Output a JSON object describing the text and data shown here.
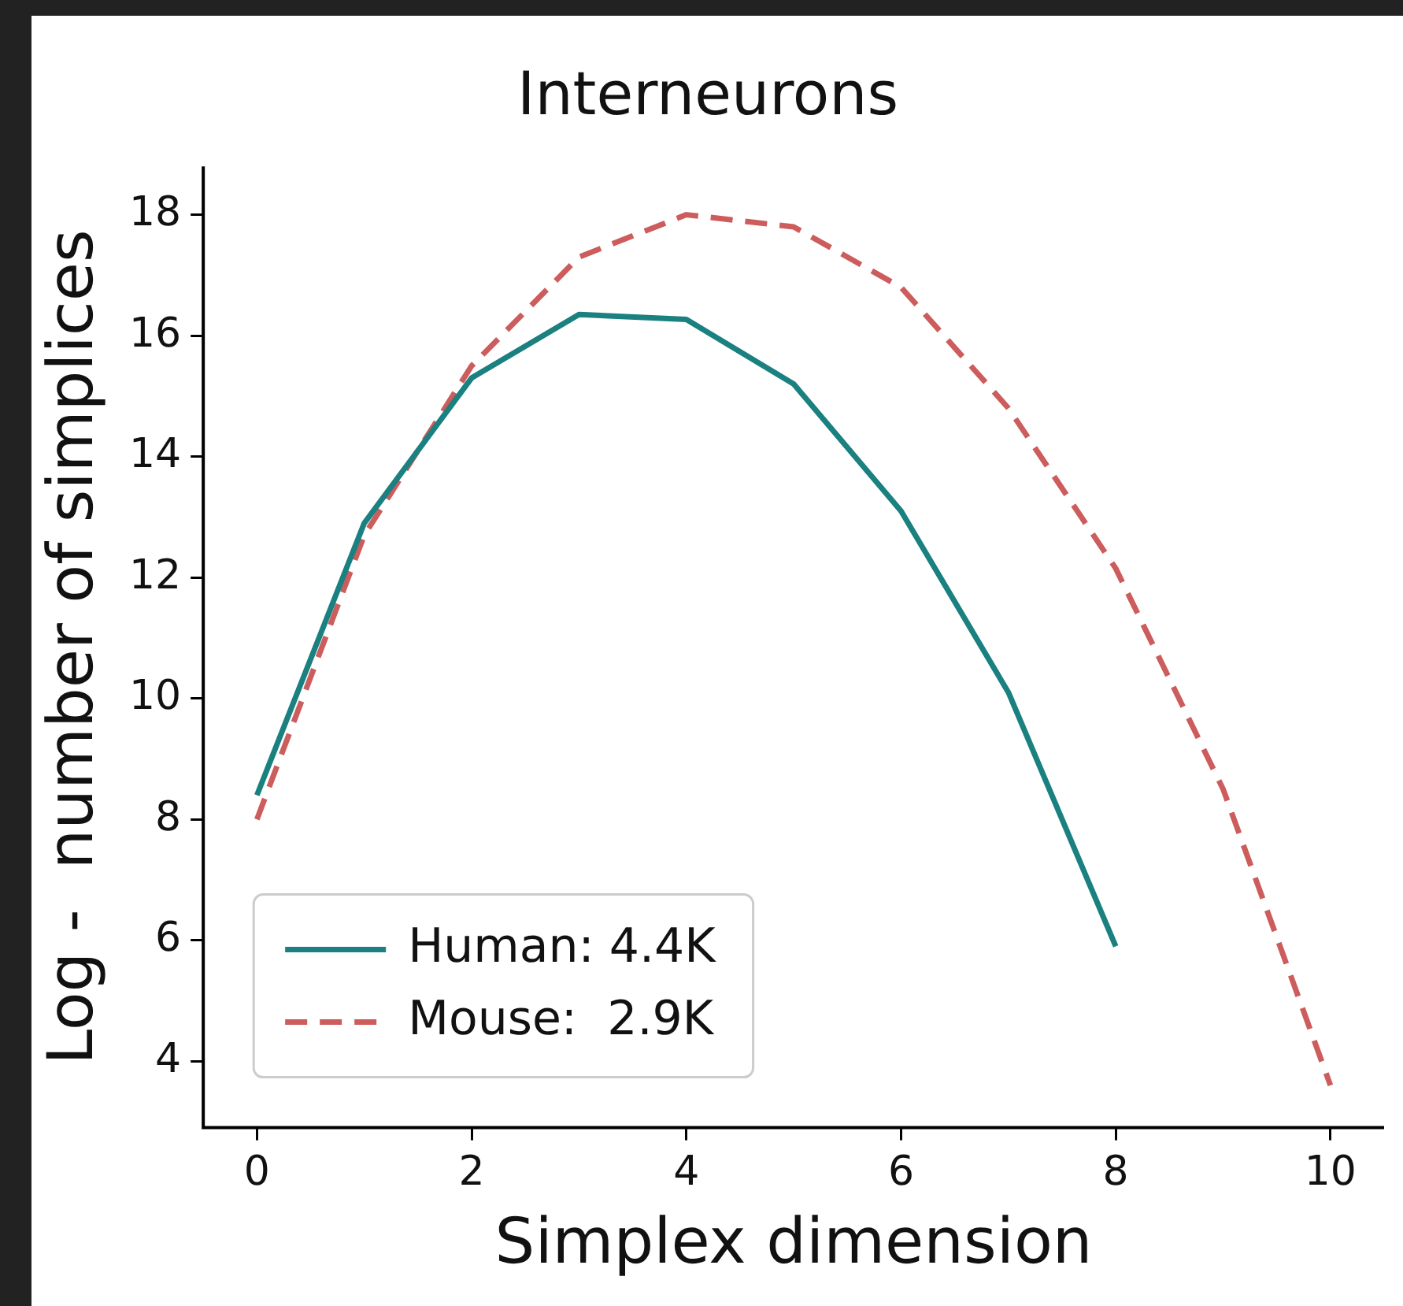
{
  "chart_data": {
    "type": "line",
    "title": "Interneurons",
    "xlabel": "Simplex dimension",
    "ylabel": "Log -  number of simplices",
    "x": [
      0,
      1,
      2,
      3,
      4,
      5,
      6,
      7,
      8,
      9,
      10
    ],
    "xlim": [
      -0.5,
      10.5
    ],
    "xticks": [
      0,
      2,
      4,
      6,
      8,
      10
    ],
    "ylim": [
      2.9,
      18.8
    ],
    "yticks": [
      4,
      6,
      8,
      10,
      12,
      14,
      16,
      18
    ],
    "grid": false,
    "legend": "bottom left",
    "marker": "none",
    "series": [
      {
        "name": "Human: 4.4K",
        "color": "#1a8080",
        "line_style": "solid",
        "values": [
          8.4,
          12.9,
          15.3,
          16.35,
          16.27,
          15.2,
          13.1,
          10.1,
          5.9,
          null,
          null
        ]
      },
      {
        "name": "Mouse:  2.9K",
        "color": "#cd5c5c",
        "line_style": "dashed",
        "values": [
          8.0,
          12.7,
          15.5,
          17.3,
          18.0,
          17.8,
          16.8,
          14.8,
          12.15,
          8.5,
          3.6
        ]
      }
    ]
  }
}
